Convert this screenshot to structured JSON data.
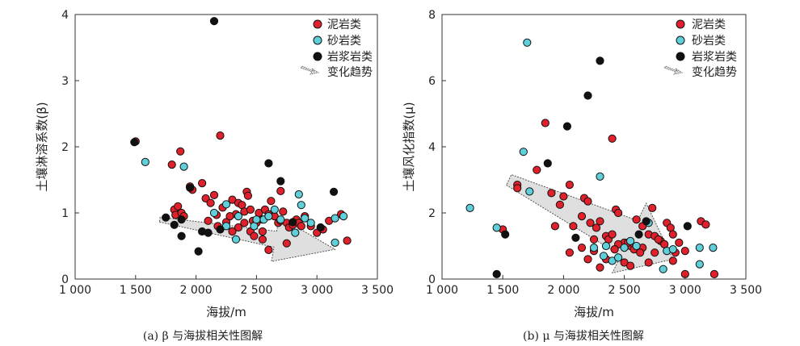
{
  "colors": {
    "mudstone": "#e0202a",
    "sandstone": "#5fd0da",
    "magmatic": "#111111",
    "arrow_fill": "#d9d9d9",
    "arrow_stroke": "#555555"
  },
  "chart_data": [
    {
      "type": "scatter",
      "ylabel": "土壤淋溶系数(β)",
      "xlabel": "海拔/m",
      "caption": "(a) β 与海拔相关性图解",
      "xlim": [
        1000,
        3500
      ],
      "ylim": [
        0,
        4
      ],
      "x_ticks": [
        1000,
        1500,
        2000,
        2500,
        3000,
        3500
      ],
      "x_tick_labels": [
        "1 000",
        "1 500",
        "2 000",
        "2 500",
        "3 000",
        "3 500"
      ],
      "y_ticks": [
        0,
        1,
        2,
        3,
        4
      ],
      "y_tick_labels": [
        "0",
        "1",
        "2",
        "3",
        "4"
      ],
      "legend_position": "top-right",
      "legend": [
        {
          "label": "泥岩类",
          "symbol": "mudstone"
        },
        {
          "label": "砂岩类",
          "symbol": "sandstone"
        },
        {
          "label": "岩浆岩类",
          "symbol": "magmatic"
        },
        {
          "label": "变化趋势",
          "symbol": "arrow"
        }
      ],
      "trend_arrow": [
        [
          1700,
          0.9
        ],
        [
          3150,
          0.45
        ]
      ],
      "series": [
        {
          "name": "泥岩类",
          "color_key": "mudstone",
          "points": [
            [
              1500,
              2.08
            ],
            [
              1800,
              1.73
            ],
            [
              1870,
              1.93
            ],
            [
              1820,
              1.05
            ],
            [
              1850,
              1.1
            ],
            [
              1830,
              0.97
            ],
            [
              1880,
              1.0
            ],
            [
              1900,
              0.95
            ],
            [
              1950,
              1.4
            ],
            [
              1970,
              1.35
            ],
            [
              2050,
              1.45
            ],
            [
              2080,
              1.22
            ],
            [
              2120,
              1.15
            ],
            [
              2150,
              1.27
            ],
            [
              2170,
              0.97
            ],
            [
              2200,
              2.17
            ],
            [
              2220,
              1.08
            ],
            [
              2250,
              0.86
            ],
            [
              2100,
              0.88
            ],
            [
              2180,
              0.8
            ],
            [
              2300,
              1.2
            ],
            [
              2330,
              0.98
            ],
            [
              2350,
              1.15
            ],
            [
              2380,
              1.12
            ],
            [
              2400,
              1.02
            ],
            [
              2420,
              1.32
            ],
            [
              2430,
              1.26
            ],
            [
              2450,
              1.05
            ],
            [
              2470,
              0.88
            ],
            [
              2500,
              0.85
            ],
            [
              2520,
              1.0
            ],
            [
              2550,
              0.9
            ],
            [
              2570,
              1.05
            ],
            [
              2600,
              0.98
            ],
            [
              2620,
              1.18
            ],
            [
              2650,
              0.95
            ],
            [
              2680,
              0.85
            ],
            [
              2700,
              0.88
            ],
            [
              2720,
              1.02
            ],
            [
              2750,
              0.85
            ],
            [
              2770,
              0.78
            ],
            [
              2800,
              0.82
            ],
            [
              2830,
              0.9
            ],
            [
              2850,
              0.85
            ],
            [
              2870,
              0.8
            ],
            [
              2900,
              0.95
            ],
            [
              2950,
              0.8
            ],
            [
              3000,
              0.7
            ],
            [
              3050,
              0.75
            ],
            [
              3100,
              0.88
            ],
            [
              3200,
              0.98
            ],
            [
              3250,
              0.58
            ],
            [
              2450,
              0.72
            ],
            [
              2480,
              0.65
            ],
            [
              2550,
              0.6
            ],
            [
              2600,
              0.44
            ],
            [
              2700,
              1.33
            ],
            [
              2750,
              0.54
            ],
            [
              2300,
              0.72
            ],
            [
              2350,
              0.78
            ],
            [
              2550,
              0.72
            ],
            [
              2400,
              0.85
            ],
            [
              2280,
              0.95
            ]
          ]
        },
        {
          "name": "砂岩类",
          "color_key": "sandstone",
          "points": [
            [
              1580,
              1.77
            ],
            [
              1900,
              1.7
            ],
            [
              2250,
              1.13
            ],
            [
              2330,
              0.6
            ],
            [
              2480,
              0.8
            ],
            [
              2560,
              0.9
            ],
            [
              2600,
              0.95
            ],
            [
              2650,
              1.05
            ],
            [
              2820,
              0.7
            ],
            [
              2850,
              1.28
            ],
            [
              2870,
              1.12
            ],
            [
              2900,
              0.92
            ],
            [
              2950,
              0.85
            ],
            [
              3150,
              0.92
            ],
            [
              3150,
              0.55
            ],
            [
              3220,
              0.95
            ],
            [
              2350,
              0.95
            ],
            [
              2500,
              0.9
            ],
            [
              2250,
              0.8
            ],
            [
              2150,
              1.0
            ],
            [
              2700,
              0.9
            ]
          ]
        },
        {
          "name": "岩浆岩类",
          "color_key": "magmatic",
          "points": [
            [
              1490,
              2.07
            ],
            [
              1750,
              0.93
            ],
            [
              1820,
              0.82
            ],
            [
              1880,
              0.9
            ],
            [
              1880,
              0.65
            ],
            [
              1950,
              1.38
            ],
            [
              2020,
              0.42
            ],
            [
              2050,
              0.72
            ],
            [
              2100,
              0.7
            ],
            [
              2150,
              3.9
            ],
            [
              2200,
              0.75
            ],
            [
              2600,
              1.75
            ],
            [
              2700,
              1.48
            ],
            [
              2800,
              0.86
            ],
            [
              3030,
              0.78
            ],
            [
              3140,
              1.32
            ]
          ]
        }
      ]
    },
    {
      "type": "scatter",
      "ylabel": "土壤风化指数(μ)",
      "xlabel": "海拔/m",
      "caption": "(b) μ 与海拔相关性图解",
      "xlim": [
        1000,
        3500
      ],
      "ylim": [
        0,
        8
      ],
      "x_ticks": [
        1000,
        1500,
        2000,
        2500,
        3000,
        3500
      ],
      "x_tick_labels": [
        "1 000",
        "1 500",
        "2 000",
        "2 500",
        "3 000",
        "3 500"
      ],
      "y_ticks": [
        0,
        2,
        4,
        6,
        8
      ],
      "y_tick_labels": [
        "0",
        "2",
        "4",
        "6",
        "8"
      ],
      "legend_position": "top-right",
      "legend": [
        {
          "label": "泥岩类",
          "symbol": "mudstone"
        },
        {
          "label": "砂岩类",
          "symbol": "sandstone"
        },
        {
          "label": "岩浆岩类",
          "symbol": "magmatic"
        },
        {
          "label": "变化趋势",
          "symbol": "arrow"
        }
      ],
      "trend_arrow": [
        [
          1550,
          3.0
        ],
        [
          2900,
          0.6
        ]
      ],
      "series": [
        {
          "name": "泥岩类",
          "color_key": "mudstone",
          "points": [
            [
              1500,
              1.5
            ],
            [
              1620,
              2.85
            ],
            [
              1620,
              2.75
            ],
            [
              1780,
              3.3
            ],
            [
              1850,
              4.72
            ],
            [
              1900,
              2.6
            ],
            [
              1930,
              1.6
            ],
            [
              1970,
              2.25
            ],
            [
              2000,
              2.5
            ],
            [
              2050,
              2.85
            ],
            [
              2080,
              1.6
            ],
            [
              2150,
              1.9
            ],
            [
              2170,
              2.45
            ],
            [
              2200,
              2.35
            ],
            [
              2220,
              1.7
            ],
            [
              2270,
              1.55
            ],
            [
              2300,
              1.75
            ],
            [
              2350,
              1.3
            ],
            [
              2370,
              1.2
            ],
            [
              2400,
              1.35
            ],
            [
              2400,
              4.25
            ],
            [
              2430,
              2.1
            ],
            [
              2450,
              2.0
            ],
            [
              2500,
              1.1
            ],
            [
              2550,
              1.0
            ],
            [
              2600,
              1.8
            ],
            [
              2650,
              1.6
            ],
            [
              2700,
              1.35
            ],
            [
              2730,
              2.15
            ],
            [
              2750,
              1.3
            ],
            [
              2800,
              1.15
            ],
            [
              2830,
              1.05
            ],
            [
              2850,
              1.7
            ],
            [
              2880,
              1.55
            ],
            [
              2900,
              1.35
            ],
            [
              2950,
              1.1
            ],
            [
              3000,
              0.85
            ],
            [
              3130,
              1.75
            ],
            [
              3170,
              1.65
            ],
            [
              3240,
              0.15
            ],
            [
              2050,
              0.8
            ],
            [
              2150,
              0.95
            ],
            [
              2200,
              0.6
            ],
            [
              2250,
              0.85
            ],
            [
              2300,
              0.35
            ],
            [
              2350,
              0.6
            ],
            [
              2450,
              1.05
            ],
            [
              2500,
              0.5
            ],
            [
              2550,
              0.4
            ],
            [
              2650,
              0.95
            ],
            [
              2700,
              0.5
            ],
            [
              2750,
              0.8
            ],
            [
              2900,
              0.55
            ],
            [
              3000,
              0.15
            ],
            [
              2250,
              1.2
            ],
            [
              2420,
              0.9
            ],
            [
              2530,
              1.1
            ],
            [
              2580,
              0.9
            ],
            [
              2630,
              0.8
            ],
            [
              2780,
              1.2
            ],
            [
              2920,
              0.8
            ]
          ]
        },
        {
          "name": "砂岩类",
          "color_key": "sandstone",
          "points": [
            [
              1230,
              2.15
            ],
            [
              1450,
              1.55
            ],
            [
              1670,
              3.85
            ],
            [
              1700,
              7.15
            ],
            [
              1720,
              2.65
            ],
            [
              2250,
              0.95
            ],
            [
              2300,
              3.1
            ],
            [
              2330,
              0.7
            ],
            [
              2400,
              0.55
            ],
            [
              2450,
              0.65
            ],
            [
              2500,
              0.95
            ],
            [
              2550,
              1.15
            ],
            [
              2820,
              0.3
            ],
            [
              2850,
              0.85
            ],
            [
              2900,
              0.9
            ],
            [
              3120,
              0.95
            ],
            [
              3120,
              0.45
            ],
            [
              3230,
              0.95
            ],
            [
              2700,
              1.7
            ],
            [
              2600,
              1.0
            ],
            [
              2350,
              1.0
            ]
          ]
        },
        {
          "name": "岩浆岩类",
          "color_key": "magmatic",
          "points": [
            [
              1450,
              0.15
            ],
            [
              1520,
              1.35
            ],
            [
              1870,
              3.5
            ],
            [
              2030,
              4.62
            ],
            [
              2100,
              1.25
            ],
            [
              2200,
              5.55
            ],
            [
              2300,
              6.6
            ],
            [
              2620,
              1.35
            ],
            [
              2680,
              1.75
            ],
            [
              3020,
              1.6
            ]
          ]
        }
      ]
    }
  ]
}
